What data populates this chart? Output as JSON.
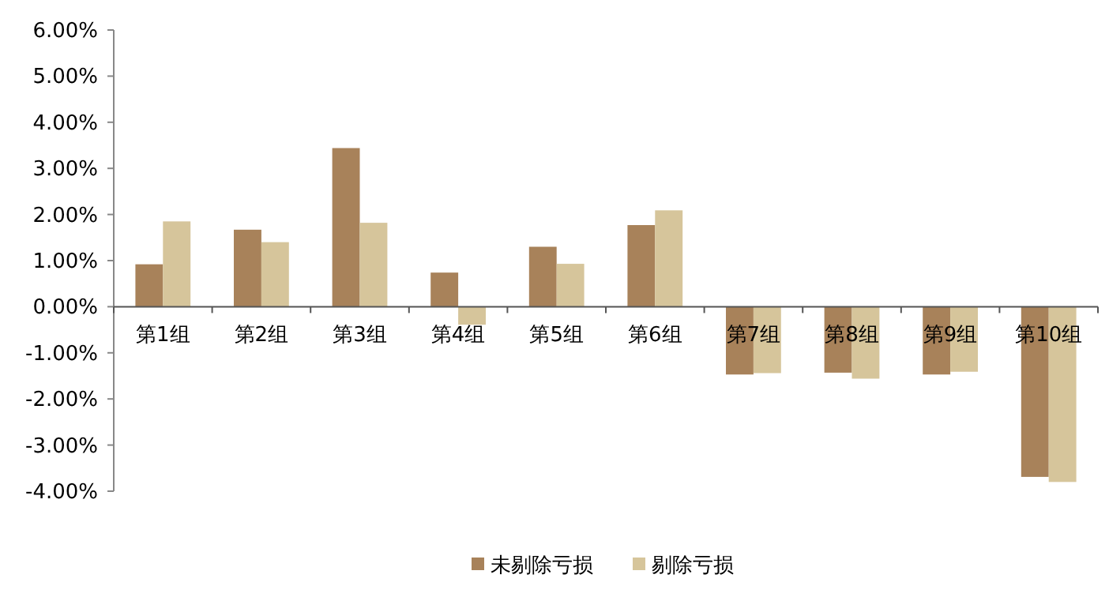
{
  "chart_data": {
    "type": "bar",
    "categories": [
      "第1组",
      "第2组",
      "第3组",
      "第4组",
      "第5组",
      "第6组",
      "第7组",
      "第8组",
      "第9组",
      "第10组"
    ],
    "series": [
      {
        "name": "未剔除亏损",
        "color": "#a8825a",
        "values": [
          0.92,
          1.67,
          3.44,
          0.74,
          1.3,
          1.77,
          -1.47,
          -1.43,
          -1.47,
          -3.69
        ]
      },
      {
        "name": "剔除亏损",
        "color": "#d6c59b",
        "values": [
          1.85,
          1.4,
          1.82,
          -0.39,
          0.93,
          2.09,
          -1.44,
          -1.56,
          -1.41,
          -3.8
        ]
      }
    ],
    "ylim": [
      -4,
      6
    ],
    "yticks": [
      {
        "value": 6,
        "label": "6.00%"
      },
      {
        "value": 5,
        "label": "5.00%"
      },
      {
        "value": 4,
        "label": "4.00%"
      },
      {
        "value": 3,
        "label": "3.00%"
      },
      {
        "value": 2,
        "label": "2.00%"
      },
      {
        "value": 1,
        "label": "1.00%"
      },
      {
        "value": 0,
        "label": "0.00%"
      },
      {
        "value": -1,
        "label": "-1.00%"
      },
      {
        "value": -2,
        "label": "-2.00%"
      },
      {
        "value": -3,
        "label": "-3.00%"
      },
      {
        "value": -4,
        "label": "-4.00%"
      }
    ],
    "grid": false,
    "legend": "bottom"
  }
}
